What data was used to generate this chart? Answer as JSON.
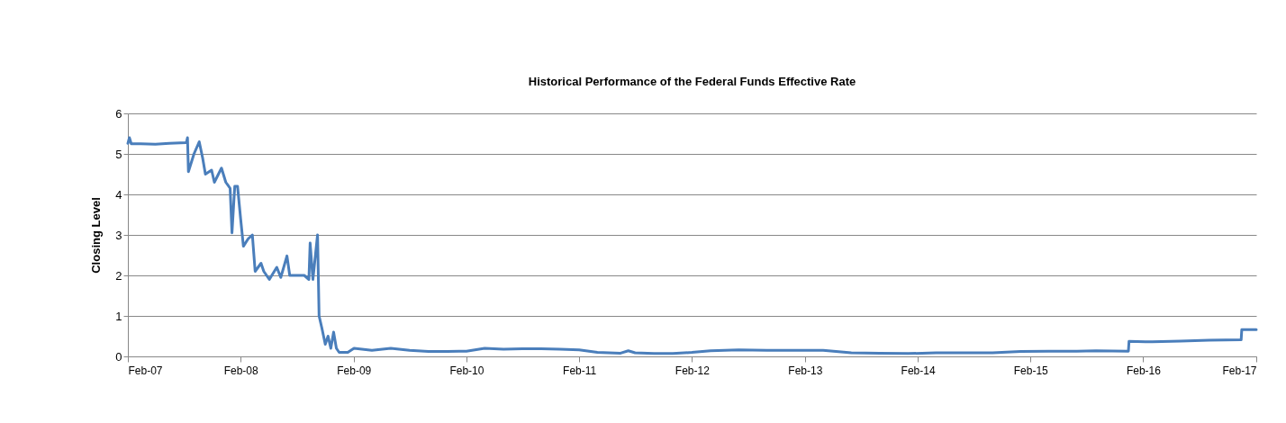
{
  "chart_data": {
    "type": "line",
    "title": "Historical Performance of the Federal Funds Effective Rate",
    "ylabel": "Closing Level",
    "x": [
      "2007-02-01",
      "2007-02-06",
      "2007-02-12",
      "2007-03-15",
      "2007-05-01",
      "2007-06-15",
      "2007-08-08",
      "2007-08-10",
      "2007-08-13",
      "2007-08-16",
      "2007-09-03",
      "2007-09-20",
      "2007-10-01",
      "2007-10-10",
      "2007-10-30",
      "2007-11-08",
      "2007-12-01",
      "2007-12-15",
      "2007-12-29",
      "2008-01-04",
      "2008-01-13",
      "2008-01-22",
      "2008-02-01",
      "2008-02-10",
      "2008-02-25",
      "2008-03-10",
      "2008-03-19",
      "2008-04-07",
      "2008-04-16",
      "2008-05-04",
      "2008-05-28",
      "2008-06-10",
      "2008-06-30",
      "2008-07-09",
      "2008-08-25",
      "2008-09-09",
      "2008-09-13",
      "2008-09-22",
      "2008-10-07",
      "2008-10-12",
      "2008-10-21",
      "2008-11-01",
      "2008-11-10",
      "2008-11-19",
      "2008-11-28",
      "2008-12-07",
      "2008-12-16",
      "2009-01-13",
      "2009-02-02",
      "2009-04-01",
      "2009-06-01",
      "2009-08-01",
      "2009-10-01",
      "2009-12-01",
      "2010-02-01",
      "2010-04-01",
      "2010-06-01",
      "2010-08-01",
      "2010-10-01",
      "2010-12-01",
      "2011-02-01",
      "2011-04-01",
      "2011-06-15",
      "2011-07-10",
      "2011-08-01",
      "2011-10-01",
      "2011-12-01",
      "2012-02-01",
      "2012-04-01",
      "2012-07-01",
      "2012-10-01",
      "2013-01-01",
      "2013-04-01",
      "2013-07-01",
      "2013-10-01",
      "2014-01-01",
      "2014-04-01",
      "2014-07-01",
      "2014-10-01",
      "2015-01-01",
      "2015-04-01",
      "2015-07-01",
      "2015-09-01",
      "2015-12-15",
      "2015-12-17",
      "2016-03-01",
      "2016-06-01",
      "2016-09-01",
      "2016-12-14",
      "2016-12-16",
      "2017-01-01",
      "2017-02-01"
    ],
    "series": [
      {
        "color": "#4a7ebb",
        "values": [
          5.26,
          5.4,
          5.25,
          5.25,
          5.24,
          5.26,
          5.28,
          5.3,
          5.4,
          4.56,
          5.0,
          5.3,
          4.9,
          4.5,
          4.6,
          4.3,
          4.65,
          4.3,
          4.15,
          3.05,
          4.2,
          4.2,
          3.4,
          2.72,
          2.9,
          3.0,
          2.1,
          2.3,
          2.1,
          1.9,
          2.2,
          1.95,
          2.48,
          2.0,
          2.0,
          1.9,
          2.8,
          1.9,
          3.0,
          1.0,
          0.7,
          0.3,
          0.5,
          0.2,
          0.6,
          0.2,
          0.1,
          0.1,
          0.2,
          0.15,
          0.2,
          0.15,
          0.12,
          0.12,
          0.13,
          0.2,
          0.18,
          0.19,
          0.19,
          0.18,
          0.16,
          0.1,
          0.08,
          0.14,
          0.09,
          0.07,
          0.07,
          0.1,
          0.14,
          0.16,
          0.15,
          0.15,
          0.15,
          0.09,
          0.08,
          0.07,
          0.09,
          0.09,
          0.09,
          0.12,
          0.13,
          0.13,
          0.14,
          0.13,
          0.37,
          0.36,
          0.38,
          0.4,
          0.41,
          0.66,
          0.66,
          0.66
        ]
      }
    ],
    "xlim": [
      "2007-02-01",
      "2017-02-01"
    ],
    "xticks": [
      {
        "value": "2007-02-01",
        "label": "Feb-07"
      },
      {
        "value": "2008-02-01",
        "label": "Feb-08"
      },
      {
        "value": "2009-02-01",
        "label": "Feb-09"
      },
      {
        "value": "2010-02-01",
        "label": "Feb-10"
      },
      {
        "value": "2011-02-01",
        "label": "Feb-11"
      },
      {
        "value": "2012-02-01",
        "label": "Feb-12"
      },
      {
        "value": "2013-02-01",
        "label": "Feb-13"
      },
      {
        "value": "2014-02-01",
        "label": "Feb-14"
      },
      {
        "value": "2015-02-01",
        "label": "Feb-15"
      },
      {
        "value": "2016-02-01",
        "label": "Feb-16"
      },
      {
        "value": "2017-02-01",
        "label": "Feb-17"
      }
    ],
    "ylim": [
      0,
      6
    ],
    "yticks": [
      0,
      1,
      2,
      3,
      4,
      5,
      6
    ],
    "grid": "y",
    "line_style": "solid"
  }
}
